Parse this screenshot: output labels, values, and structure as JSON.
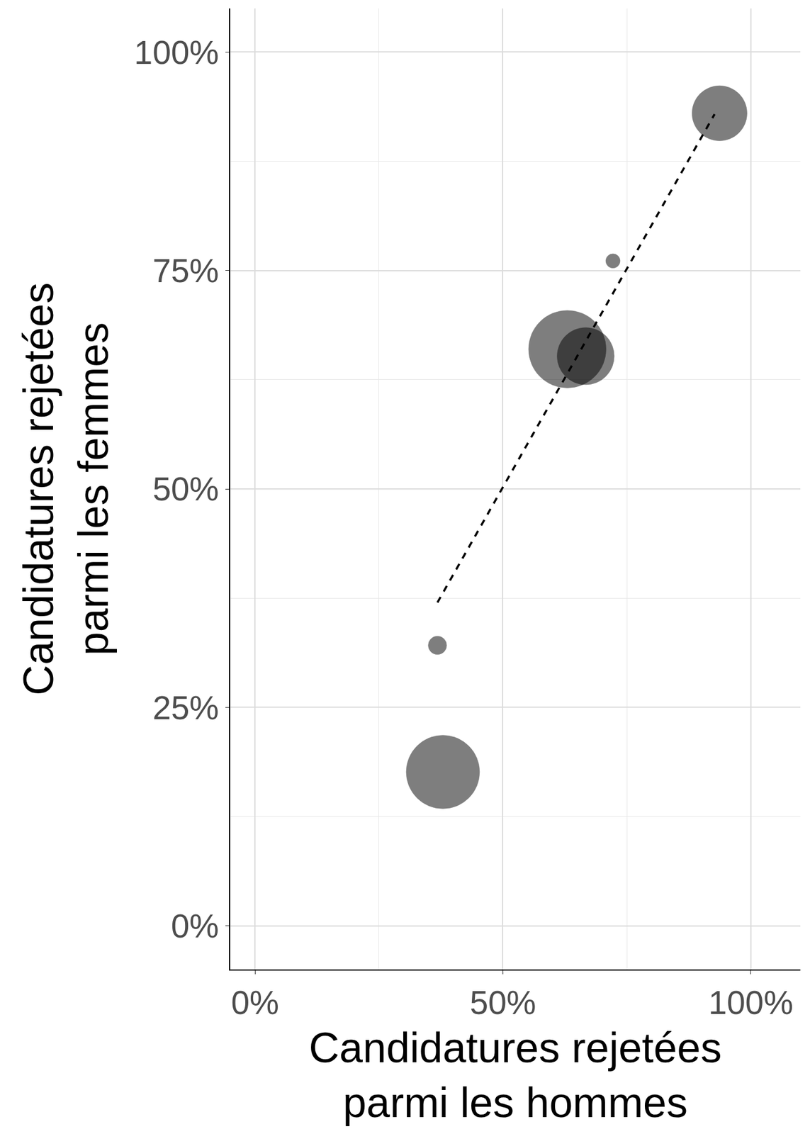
{
  "chart_data": {
    "type": "scatter",
    "x_label": "Candidatures rejetées\nparmi les hommes",
    "y_label": "Candidatures rejetées\nparmi les femmes",
    "xlim": [
      -5,
      110
    ],
    "ylim": [
      -5,
      105
    ],
    "xticks": [
      {
        "value": 0,
        "label": "0%"
      },
      {
        "value": 50,
        "label": "50%"
      },
      {
        "value": 100,
        "label": "100%"
      }
    ],
    "yticks": [
      {
        "value": 0,
        "label": "0%"
      },
      {
        "value": 25,
        "label": "25%"
      },
      {
        "value": 50,
        "label": "50%"
      },
      {
        "value": 75,
        "label": "75%"
      },
      {
        "value": 100,
        "label": "100%"
      }
    ],
    "grid": true,
    "series": [
      {
        "type": "scatter",
        "marker": "circle",
        "color": "#000000",
        "x": [
          93.7,
          72.2,
          63.0,
          66.7,
          36.8,
          37.9
        ],
        "values": [
          93.0,
          76.1,
          66.0,
          65.2,
          32.1,
          17.6
        ],
        "sizes": [
          729,
          49,
          1444,
          784,
          81,
          1296
        ]
      },
      {
        "type": "line",
        "line_style": "dashed",
        "color": "#000000",
        "x": [
          36.8,
          92.7
        ],
        "values": [
          37.0,
          92.9
        ]
      }
    ]
  }
}
